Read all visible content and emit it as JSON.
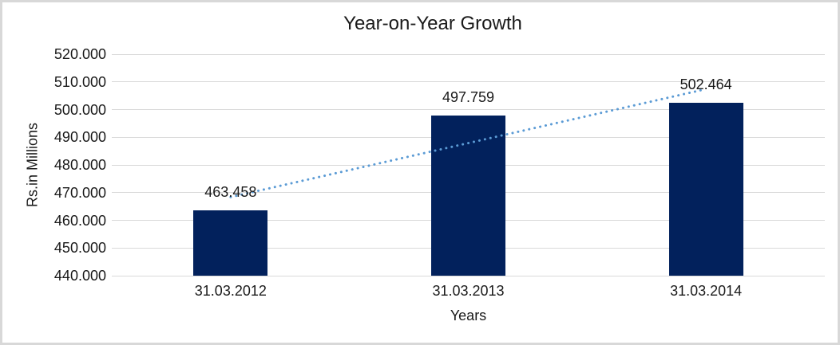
{
  "chart_data": {
    "type": "bar",
    "title": "Year-on-Year Growth",
    "categories": [
      "31.03.2012",
      "31.03.2013",
      "31.03.2014"
    ],
    "values": [
      463.458,
      497.759,
      502.464
    ],
    "data_labels": [
      "463.458",
      "497.759",
      "502.464"
    ],
    "xlabel": "Years",
    "ylabel": "Rs.in Millions",
    "ylim": [
      440,
      520
    ],
    "y_ticks": [
      440,
      450,
      460,
      470,
      480,
      490,
      500,
      510,
      520
    ],
    "y_tick_labels": [
      "440.000",
      "450.000",
      "460.000",
      "470.000",
      "480.000",
      "490.000",
      "500.000",
      "510.000",
      "520.000"
    ],
    "grid": true,
    "legend": false,
    "bar_color": "#02215C",
    "gridline_color": "#D9D9D9",
    "text_color": "#1A1A1A",
    "background_color": "#FFFFFF",
    "frame_color": "#D8D8D8",
    "trendline": {
      "type": "linear",
      "style": "dotted",
      "color": "#5B9BD5",
      "start_value": 468.39,
      "end_value": 507.4
    }
  }
}
